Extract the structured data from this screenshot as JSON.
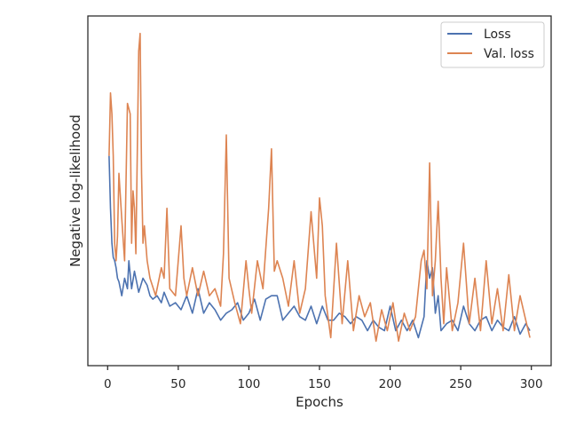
{
  "chart_data": {
    "type": "line",
    "xlabel": "Epochs",
    "ylabel": "Negative log-likelihood",
    "xlim": [
      -14,
      314
    ],
    "ylim": [
      0,
      1
    ],
    "xticks": [
      0,
      50,
      100,
      150,
      200,
      250,
      300
    ],
    "grid": false,
    "legend_position": "top-right",
    "y_tick_labels_shown": false,
    "series": [
      {
        "name": "Loss",
        "color": "#4c72b0",
        "x": [
          1,
          2,
          3,
          4,
          5,
          6,
          7,
          8,
          10,
          12,
          14,
          15,
          17,
          19,
          22,
          25,
          28,
          30,
          32,
          35,
          38,
          40,
          44,
          48,
          52,
          56,
          60,
          64,
          68,
          72,
          76,
          80,
          84,
          88,
          92,
          96,
          100,
          104,
          108,
          112,
          116,
          120,
          124,
          128,
          132,
          136,
          140,
          144,
          148,
          152,
          156,
          160,
          164,
          168,
          172,
          176,
          180,
          184,
          188,
          192,
          196,
          200,
          204,
          208,
          212,
          216,
          220,
          224,
          226,
          228,
          230,
          232,
          234,
          236,
          240,
          244,
          248,
          252,
          256,
          260,
          264,
          268,
          272,
          276,
          280,
          284,
          288,
          292,
          296,
          299
        ],
        "y": [
          0.6,
          0.45,
          0.35,
          0.31,
          0.3,
          0.28,
          0.25,
          0.24,
          0.2,
          0.25,
          0.22,
          0.3,
          0.22,
          0.27,
          0.21,
          0.25,
          0.23,
          0.2,
          0.19,
          0.2,
          0.18,
          0.21,
          0.17,
          0.18,
          0.16,
          0.2,
          0.15,
          0.22,
          0.15,
          0.18,
          0.16,
          0.13,
          0.15,
          0.16,
          0.18,
          0.13,
          0.15,
          0.19,
          0.13,
          0.19,
          0.2,
          0.2,
          0.13,
          0.15,
          0.17,
          0.14,
          0.13,
          0.17,
          0.12,
          0.17,
          0.13,
          0.13,
          0.15,
          0.14,
          0.12,
          0.14,
          0.13,
          0.1,
          0.13,
          0.11,
          0.1,
          0.17,
          0.1,
          0.13,
          0.1,
          0.13,
          0.08,
          0.14,
          0.3,
          0.25,
          0.28,
          0.15,
          0.2,
          0.1,
          0.12,
          0.13,
          0.1,
          0.17,
          0.12,
          0.1,
          0.13,
          0.14,
          0.1,
          0.13,
          0.11,
          0.1,
          0.14,
          0.09,
          0.12,
          0.1
        ]
      },
      {
        "name": "Val. loss",
        "color": "#dd8452",
        "x": [
          1,
          2,
          3,
          4,
          5,
          6,
          7,
          8,
          10,
          12,
          14,
          16,
          17,
          18,
          19,
          20,
          22,
          23,
          24,
          25,
          26,
          28,
          30,
          34,
          38,
          40,
          42,
          44,
          48,
          52,
          54,
          56,
          60,
          64,
          68,
          72,
          76,
          80,
          82,
          84,
          86,
          90,
          94,
          98,
          100,
          102,
          106,
          110,
          114,
          116,
          118,
          120,
          124,
          128,
          132,
          136,
          140,
          144,
          148,
          150,
          152,
          154,
          158,
          162,
          166,
          170,
          174,
          178,
          182,
          186,
          190,
          194,
          198,
          202,
          206,
          210,
          214,
          218,
          222,
          224,
          226,
          228,
          230,
          232,
          234,
          236,
          238,
          240,
          244,
          248,
          252,
          256,
          260,
          264,
          268,
          272,
          276,
          280,
          284,
          288,
          292,
          296,
          299
        ],
        "y": [
          0.6,
          0.78,
          0.72,
          0.6,
          0.35,
          0.3,
          0.37,
          0.55,
          0.42,
          0.3,
          0.75,
          0.72,
          0.35,
          0.5,
          0.45,
          0.32,
          0.9,
          0.95,
          0.55,
          0.35,
          0.4,
          0.3,
          0.25,
          0.2,
          0.28,
          0.25,
          0.45,
          0.22,
          0.2,
          0.4,
          0.25,
          0.2,
          0.28,
          0.2,
          0.27,
          0.2,
          0.22,
          0.17,
          0.32,
          0.66,
          0.25,
          0.18,
          0.12,
          0.3,
          0.22,
          0.15,
          0.3,
          0.22,
          0.45,
          0.62,
          0.27,
          0.3,
          0.25,
          0.17,
          0.3,
          0.15,
          0.22,
          0.44,
          0.25,
          0.48,
          0.4,
          0.2,
          0.08,
          0.35,
          0.12,
          0.3,
          0.1,
          0.2,
          0.14,
          0.18,
          0.07,
          0.16,
          0.1,
          0.18,
          0.07,
          0.15,
          0.1,
          0.14,
          0.3,
          0.33,
          0.22,
          0.58,
          0.2,
          0.3,
          0.47,
          0.25,
          0.12,
          0.28,
          0.1,
          0.18,
          0.35,
          0.12,
          0.25,
          0.1,
          0.3,
          0.12,
          0.22,
          0.1,
          0.26,
          0.1,
          0.2,
          0.13,
          0.08
        ]
      }
    ]
  }
}
